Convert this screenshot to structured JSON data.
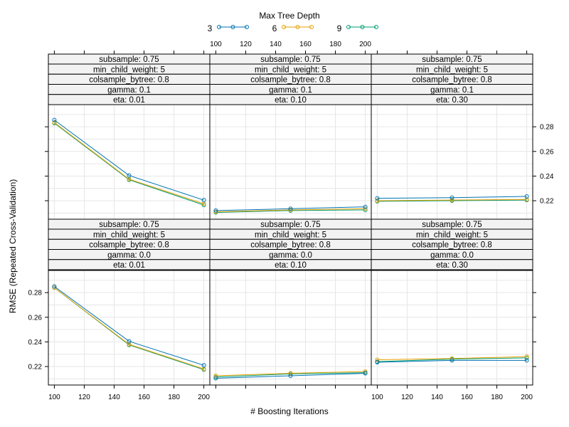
{
  "chart_data": {
    "type": "line",
    "legend": {
      "title": "Max Tree Depth",
      "position": "top",
      "entries": [
        {
          "label": "3",
          "color": "#0072B2"
        },
        {
          "label": "6",
          "color": "#E69F00"
        },
        {
          "label": "9",
          "color": "#009E73"
        }
      ]
    },
    "xlabel": "# Boosting Iterations",
    "ylabel": "RMSE (Repeated Cross-Validation)",
    "x": [
      100,
      150,
      200
    ],
    "x_ticks": [
      100,
      120,
      140,
      160,
      180,
      200
    ],
    "xlim": [
      96,
      204
    ],
    "y_ticks": [
      0.22,
      0.24,
      0.26,
      0.28
    ],
    "ylim": [
      0.205,
      0.298
    ],
    "grid": true,
    "panels": [
      {
        "strips": [
          "subsample: 0.75",
          "min_child_weight: 5",
          "colsample_bytree: 0.8",
          "gamma: 0.1",
          "eta: 0.01"
        ],
        "series": [
          {
            "name": "3",
            "values": [
              0.2855,
              0.2405,
              0.2205
            ]
          },
          {
            "name": "6",
            "values": [
              0.2835,
              0.2375,
              0.2175
            ]
          },
          {
            "name": "9",
            "values": [
              0.283,
              0.237,
              0.2165
            ]
          }
        ]
      },
      {
        "strips": [
          "subsample: 0.75",
          "min_child_weight: 5",
          "colsample_bytree: 0.8",
          "gamma: 0.1",
          "eta: 0.10"
        ],
        "series": [
          {
            "name": "3",
            "values": [
              0.212,
              0.2135,
              0.215
            ]
          },
          {
            "name": "6",
            "values": [
              0.211,
              0.2125,
              0.2135
            ]
          },
          {
            "name": "9",
            "values": [
              0.2105,
              0.212,
              0.2125
            ]
          }
        ]
      },
      {
        "strips": [
          "subsample: 0.75",
          "min_child_weight: 5",
          "colsample_bytree: 0.8",
          "gamma: 0.1",
          "eta: 0.30"
        ],
        "series": [
          {
            "name": "3",
            "values": [
              0.222,
              0.2225,
              0.2235
            ]
          },
          {
            "name": "6",
            "values": [
              0.22,
              0.2205,
              0.221
            ]
          },
          {
            "name": "9",
            "values": [
              0.2195,
              0.22,
              0.2205
            ]
          }
        ]
      },
      {
        "strips": [
          "subsample: 0.75",
          "min_child_weight: 5",
          "colsample_bytree: 0.8",
          "gamma: 0.0",
          "eta: 0.01"
        ],
        "series": [
          {
            "name": "3",
            "values": [
              0.285,
              0.2405,
              0.221
            ]
          },
          {
            "name": "6",
            "values": [
              0.284,
              0.238,
              0.218
            ]
          },
          {
            "name": "9",
            "values": [
              0.284,
              0.2375,
              0.2175
            ]
          }
        ]
      },
      {
        "strips": [
          "subsample: 0.75",
          "min_child_weight: 5",
          "colsample_bytree: 0.8",
          "gamma: 0.0",
          "eta: 0.10"
        ],
        "series": [
          {
            "name": "3",
            "values": [
              0.2105,
              0.2125,
              0.2145
            ]
          },
          {
            "name": "6",
            "values": [
              0.2125,
              0.2145,
              0.216
            ]
          },
          {
            "name": "9",
            "values": [
              0.2115,
              0.214,
              0.215
            ]
          }
        ]
      },
      {
        "strips": [
          "subsample: 0.75",
          "min_child_weight: 5",
          "colsample_bytree: 0.8",
          "gamma: 0.0",
          "eta: 0.30"
        ],
        "series": [
          {
            "name": "3",
            "values": [
              0.2235,
              0.225,
              0.225
            ]
          },
          {
            "name": "6",
            "values": [
              0.2255,
              0.2265,
              0.228
            ]
          },
          {
            "name": "9",
            "values": [
              0.224,
              0.226,
              0.227
            ]
          }
        ]
      }
    ]
  }
}
